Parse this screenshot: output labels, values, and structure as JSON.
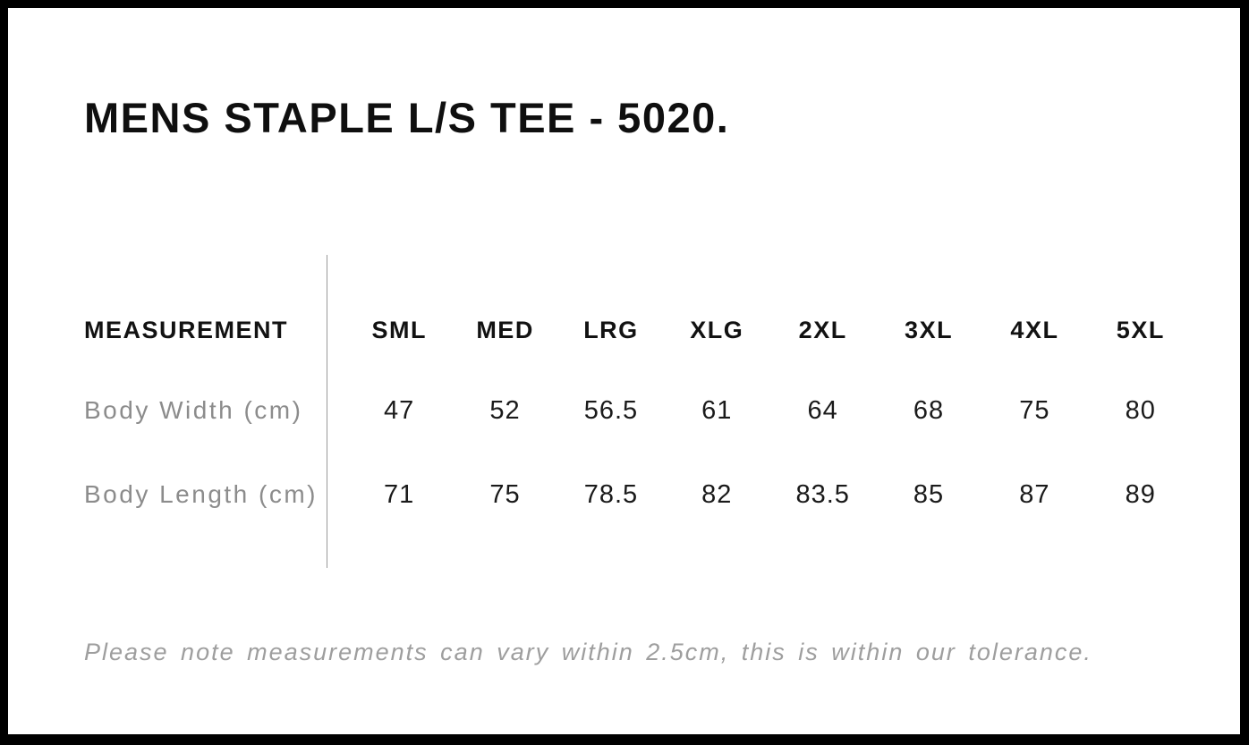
{
  "chart_data": {
    "type": "table",
    "title": "MENS STAPLE L/S TEE - 5020.",
    "columns": [
      "MEASUREMENT",
      "SML",
      "MED",
      "LRG",
      "XLG",
      "2XL",
      "3XL",
      "4XL",
      "5XL"
    ],
    "rows": [
      [
        "Body Width (cm)",
        "47",
        "52",
        "56.5",
        "61",
        "64",
        "68",
        "75",
        "80"
      ],
      [
        "Body Length (cm)",
        "71",
        "75",
        "78.5",
        "82",
        "83.5",
        "85",
        "87",
        "89"
      ]
    ],
    "footnote": "Please note measurements can vary within 2.5cm, this is within our tolerance.",
    "layout_hints": {
      "divider": "vertical line between label column and size columns",
      "grid": "off"
    }
  },
  "colors": {
    "page_background": "#ffffff",
    "frame_border": "#000000",
    "heading_text": "#0f0f0f",
    "table_values": "#1a1a1a",
    "row_labels": "#8c8c8c",
    "note_text": "#9e9e9e",
    "divider_line": "#999999"
  }
}
